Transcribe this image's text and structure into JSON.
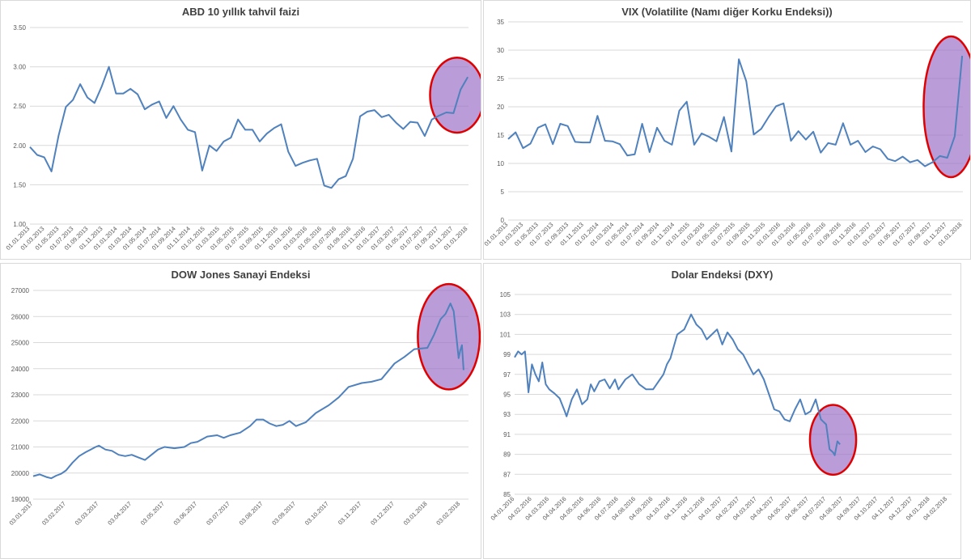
{
  "colors": {
    "line": "#4f81bd",
    "grid": "#d9d9d9",
    "highlight_fill": "#9b72c8",
    "highlight_stroke": "#e00000",
    "tick_text": "#595959"
  },
  "chart_data": [
    {
      "type": "line",
      "title": "ABD 10 yıllık tahvil faizi",
      "xlabel": "",
      "ylabel": "",
      "ylim": [
        1.0,
        3.5
      ],
      "yticks": [
        1.0,
        1.5,
        2.0,
        2.5,
        3.0,
        3.5
      ],
      "ytick_labels": [
        "1.00",
        "1.50",
        "2.00",
        "2.50",
        "3.00",
        "3.50"
      ],
      "xtick_labels": [
        "01.01.2013",
        "01.03.2013",
        "01.05.2013",
        "01.07.2013",
        "01.09.2013",
        "01.11.2013",
        "01.01.2014",
        "01.03.2014",
        "01.05.2014",
        "01.07.2014",
        "01.09.2014",
        "01.11.2014",
        "01.01.2015",
        "01.03.2015",
        "01.05.2015",
        "01.07.2015",
        "01.09.2015",
        "01.11.2015",
        "01.01.2016",
        "01.03.2016",
        "01.05.2016",
        "01.07.2016",
        "01.09.2016",
        "01.11.2016",
        "01.01.2017",
        "01.03.2017",
        "01.05.2017",
        "01.07.2017",
        "01.09.2017",
        "01.11.2017",
        "01.01.2018"
      ],
      "x_unit": "month",
      "series": [
        {
          "values": [
            1.98,
            1.88,
            1.85,
            1.67,
            2.13,
            2.49,
            2.58,
            2.78,
            2.61,
            2.54,
            2.75,
            3.0,
            2.66,
            2.66,
            2.72,
            2.65,
            2.46,
            2.52,
            2.56,
            2.35,
            2.5,
            2.33,
            2.2,
            2.17,
            1.68,
            2.0,
            1.93,
            2.05,
            2.1,
            2.33,
            2.2,
            2.2,
            2.05,
            2.15,
            2.22,
            2.27,
            1.92,
            1.74,
            1.78,
            1.81,
            1.83,
            1.49,
            1.46,
            1.57,
            1.61,
            1.83,
            2.37,
            2.43,
            2.45,
            2.36,
            2.39,
            2.29,
            2.21,
            2.3,
            2.29,
            2.12,
            2.33,
            2.38,
            2.42,
            2.41,
            2.71,
            2.87
          ]
        }
      ],
      "highlight": {
        "shape": "ellipse",
        "from_index": 58,
        "to_index": 61
      }
    },
    {
      "type": "line",
      "title": "VIX (Volatilite (Namı diğer Korku Endeksi))",
      "xlabel": "",
      "ylabel": "",
      "ylim": [
        0,
        35
      ],
      "yticks": [
        0,
        5,
        10,
        15,
        20,
        25,
        30,
        35
      ],
      "ytick_labels": [
        "0",
        "5",
        "10",
        "15",
        "20",
        "25",
        "30",
        "35"
      ],
      "xtick_labels": [
        "01.01.2013",
        "01.03.2013",
        "01.05.2013",
        "01.07.2013",
        "01.09.2013",
        "01.11.2013",
        "01.01.2014",
        "01.03.2014",
        "01.05.2014",
        "01.07.2014",
        "01.09.2014",
        "01.11.2014",
        "01.01.2015",
        "01.03.2015",
        "01.05.2015",
        "01.07.2015",
        "01.09.2015",
        "01.11.2015",
        "01.01.2016",
        "01.03.2016",
        "01.05.2016",
        "01.07.2016",
        "01.09.2016",
        "01.11.2016",
        "01.01.2017",
        "01.03.2017",
        "01.05.2017",
        "01.07.2017",
        "01.09.2017",
        "01.11.2017",
        "01.01.2018"
      ],
      "x_unit": "month",
      "series": [
        {
          "values": [
            14.3,
            15.5,
            12.7,
            13.5,
            16.3,
            16.9,
            13.4,
            17.0,
            16.6,
            13.8,
            13.7,
            13.7,
            18.4,
            14.0,
            13.9,
            13.4,
            11.4,
            11.6,
            17.0,
            12.0,
            16.3,
            14.0,
            13.3,
            19.3,
            20.9,
            13.3,
            15.3,
            14.7,
            13.9,
            18.2,
            12.1,
            28.4,
            24.5,
            15.1,
            16.1,
            18.2,
            20.1,
            20.6,
            14.0,
            15.7,
            14.2,
            15.6,
            11.9,
            13.6,
            13.3,
            17.1,
            13.3,
            14.0,
            12.0,
            13.0,
            12.5,
            10.8,
            10.4,
            11.2,
            10.2,
            10.6,
            9.5,
            10.2,
            11.3,
            11.0,
            14.8,
            29.0
          ]
        }
      ],
      "highlight": {
        "shape": "ellipse",
        "from_index": 58,
        "to_index": 61
      }
    },
    {
      "type": "line",
      "title": "DOW Jones Sanayi Endeksi",
      "xlabel": "",
      "ylabel": "",
      "ylim": [
        19000,
        27000
      ],
      "yticks": [
        19000,
        20000,
        21000,
        22000,
        23000,
        24000,
        25000,
        26000,
        27000
      ],
      "ytick_labels": [
        "19000",
        "20000",
        "21000",
        "22000",
        "23000",
        "24000",
        "25000",
        "26000",
        "27000"
      ],
      "xtick_labels": [
        "03.01.2017",
        "03.02.2017",
        "03.03.2017",
        "03.04.2017",
        "03.05.2017",
        "03.06.2017",
        "03.07.2017",
        "03.08.2017",
        "03.09.2017",
        "03.10.2017",
        "03.11.2017",
        "03.12.2017",
        "03.01.2018",
        "03.02.2018"
      ],
      "x_unit": "month",
      "series": [
        {
          "points": [
            [
              0,
              19880
            ],
            [
              0.2,
              19950
            ],
            [
              0.4,
              19850
            ],
            [
              0.55,
              19800
            ],
            [
              0.7,
              19900
            ],
            [
              0.85,
              19970
            ],
            [
              1.0,
              20100
            ],
            [
              1.2,
              20400
            ],
            [
              1.4,
              20650
            ],
            [
              1.6,
              20800
            ],
            [
              1.75,
              20900
            ],
            [
              1.9,
              21000
            ],
            [
              2.0,
              21050
            ],
            [
              2.2,
              20900
            ],
            [
              2.4,
              20850
            ],
            [
              2.6,
              20700
            ],
            [
              2.8,
              20650
            ],
            [
              3.0,
              20700
            ],
            [
              3.2,
              20600
            ],
            [
              3.4,
              20500
            ],
            [
              3.6,
              20700
            ],
            [
              3.8,
              20900
            ],
            [
              4.0,
              21000
            ],
            [
              4.3,
              20950
            ],
            [
              4.6,
              21000
            ],
            [
              4.8,
              21150
            ],
            [
              5.0,
              21200
            ],
            [
              5.3,
              21400
            ],
            [
              5.6,
              21450
            ],
            [
              5.8,
              21350
            ],
            [
              6.0,
              21450
            ],
            [
              6.3,
              21550
            ],
            [
              6.6,
              21800
            ],
            [
              6.8,
              22050
            ],
            [
              7.0,
              22050
            ],
            [
              7.2,
              21900
            ],
            [
              7.4,
              21800
            ],
            [
              7.6,
              21850
            ],
            [
              7.8,
              22000
            ],
            [
              8.0,
              21800
            ],
            [
              8.3,
              21950
            ],
            [
              8.6,
              22300
            ],
            [
              9.0,
              22600
            ],
            [
              9.3,
              22900
            ],
            [
              9.6,
              23300
            ],
            [
              10.0,
              23450
            ],
            [
              10.3,
              23500
            ],
            [
              10.6,
              23600
            ],
            [
              11.0,
              24200
            ],
            [
              11.3,
              24450
            ],
            [
              11.6,
              24750
            ],
            [
              12.0,
              24800
            ],
            [
              12.2,
              25300
            ],
            [
              12.4,
              25900
            ],
            [
              12.55,
              26100
            ],
            [
              12.7,
              26500
            ],
            [
              12.8,
              26200
            ],
            [
              12.9,
              25000
            ],
            [
              12.95,
              24400
            ],
            [
              13.0,
              24700
            ],
            [
              13.05,
              24900
            ],
            [
              13.1,
              23950
            ]
          ]
        }
      ],
      "highlight": {
        "shape": "ellipse",
        "from_x": 12.1,
        "to_x": 13.2
      }
    },
    {
      "type": "line",
      "title": "Dolar Endeksi (DXY)",
      "xlabel": "",
      "ylabel": "",
      "ylim": [
        85,
        105
      ],
      "yticks": [
        85,
        87,
        89,
        91,
        93,
        95,
        97,
        99,
        101,
        103,
        105
      ],
      "ytick_labels": [
        "85",
        "87",
        "89",
        "91",
        "93",
        "95",
        "97",
        "99",
        "101",
        "103",
        "105"
      ],
      "xtick_labels": [
        "04.01.2016",
        "04.02.2016",
        "04.03.2016",
        "04.04.2016",
        "04.05.2016",
        "04.06.2016",
        "04.07.2016",
        "04.08.2016",
        "04.09.2016",
        "04.10.2016",
        "04.11.2016",
        "04.12.2016",
        "04.01.2017",
        "04.02.2017",
        "04.03.2017",
        "04.04.2017",
        "04.05.2017",
        "04.06.2017",
        "04.07.2017",
        "04.08.2017",
        "04.09.2017",
        "04.10.2017",
        "04.11.2017",
        "04.12.2017",
        "04.01.2018",
        "04.02.2018"
      ],
      "x_unit": "month",
      "series": [
        {
          "points": [
            [
              0,
              98.7
            ],
            [
              0.2,
              99.3
            ],
            [
              0.4,
              99.0
            ],
            [
              0.6,
              99.3
            ],
            [
              0.8,
              95.2
            ],
            [
              1.0,
              98.0
            ],
            [
              1.2,
              97.0
            ],
            [
              1.4,
              96.3
            ],
            [
              1.6,
              98.2
            ],
            [
              1.8,
              96.0
            ],
            [
              2.0,
              95.5
            ],
            [
              2.3,
              95.1
            ],
            [
              2.6,
              94.6
            ],
            [
              2.9,
              93.3
            ],
            [
              3.0,
              92.8
            ],
            [
              3.3,
              94.5
            ],
            [
              3.6,
              95.5
            ],
            [
              3.9,
              94.0
            ],
            [
              4.2,
              94.5
            ],
            [
              4.4,
              96.0
            ],
            [
              4.6,
              95.3
            ],
            [
              4.9,
              96.3
            ],
            [
              5.2,
              96.5
            ],
            [
              5.5,
              95.6
            ],
            [
              5.8,
              96.5
            ],
            [
              6.0,
              95.5
            ],
            [
              6.4,
              96.5
            ],
            [
              6.8,
              97.0
            ],
            [
              7.2,
              96.0
            ],
            [
              7.6,
              95.5
            ],
            [
              8.0,
              95.5
            ],
            [
              8.2,
              96.0
            ],
            [
              8.4,
              96.5
            ],
            [
              8.6,
              97.0
            ],
            [
              8.8,
              98.0
            ],
            [
              9.0,
              98.6
            ],
            [
              9.4,
              101.0
            ],
            [
              9.8,
              101.5
            ],
            [
              10.2,
              103.0
            ],
            [
              10.5,
              102.0
            ],
            [
              10.8,
              101.5
            ],
            [
              11.1,
              100.5
            ],
            [
              11.4,
              101.0
            ],
            [
              11.7,
              101.5
            ],
            [
              12.0,
              100.0
            ],
            [
              12.3,
              101.2
            ],
            [
              12.6,
              100.5
            ],
            [
              12.9,
              99.5
            ],
            [
              13.2,
              99.0
            ],
            [
              13.5,
              98.0
            ],
            [
              13.8,
              97.0
            ],
            [
              14.1,
              97.5
            ],
            [
              14.4,
              96.5
            ],
            [
              14.7,
              95.0
            ],
            [
              15.0,
              93.5
            ],
            [
              15.3,
              93.3
            ],
            [
              15.6,
              92.5
            ],
            [
              15.9,
              92.3
            ],
            [
              16.2,
              93.5
            ],
            [
              16.5,
              94.5
            ],
            [
              16.8,
              93.0
            ],
            [
              17.1,
              93.3
            ],
            [
              17.4,
              94.5
            ],
            [
              17.7,
              92.5
            ],
            [
              18.0,
              92.0
            ],
            [
              18.2,
              89.5
            ],
            [
              18.4,
              89.2
            ],
            [
              18.5,
              88.9
            ],
            [
              18.65,
              90.3
            ],
            [
              18.8,
              90.0
            ]
          ]
        }
      ],
      "highlight": {
        "shape": "ellipse",
        "from_x": 18.0,
        "to_x": 18.9
      }
    }
  ]
}
